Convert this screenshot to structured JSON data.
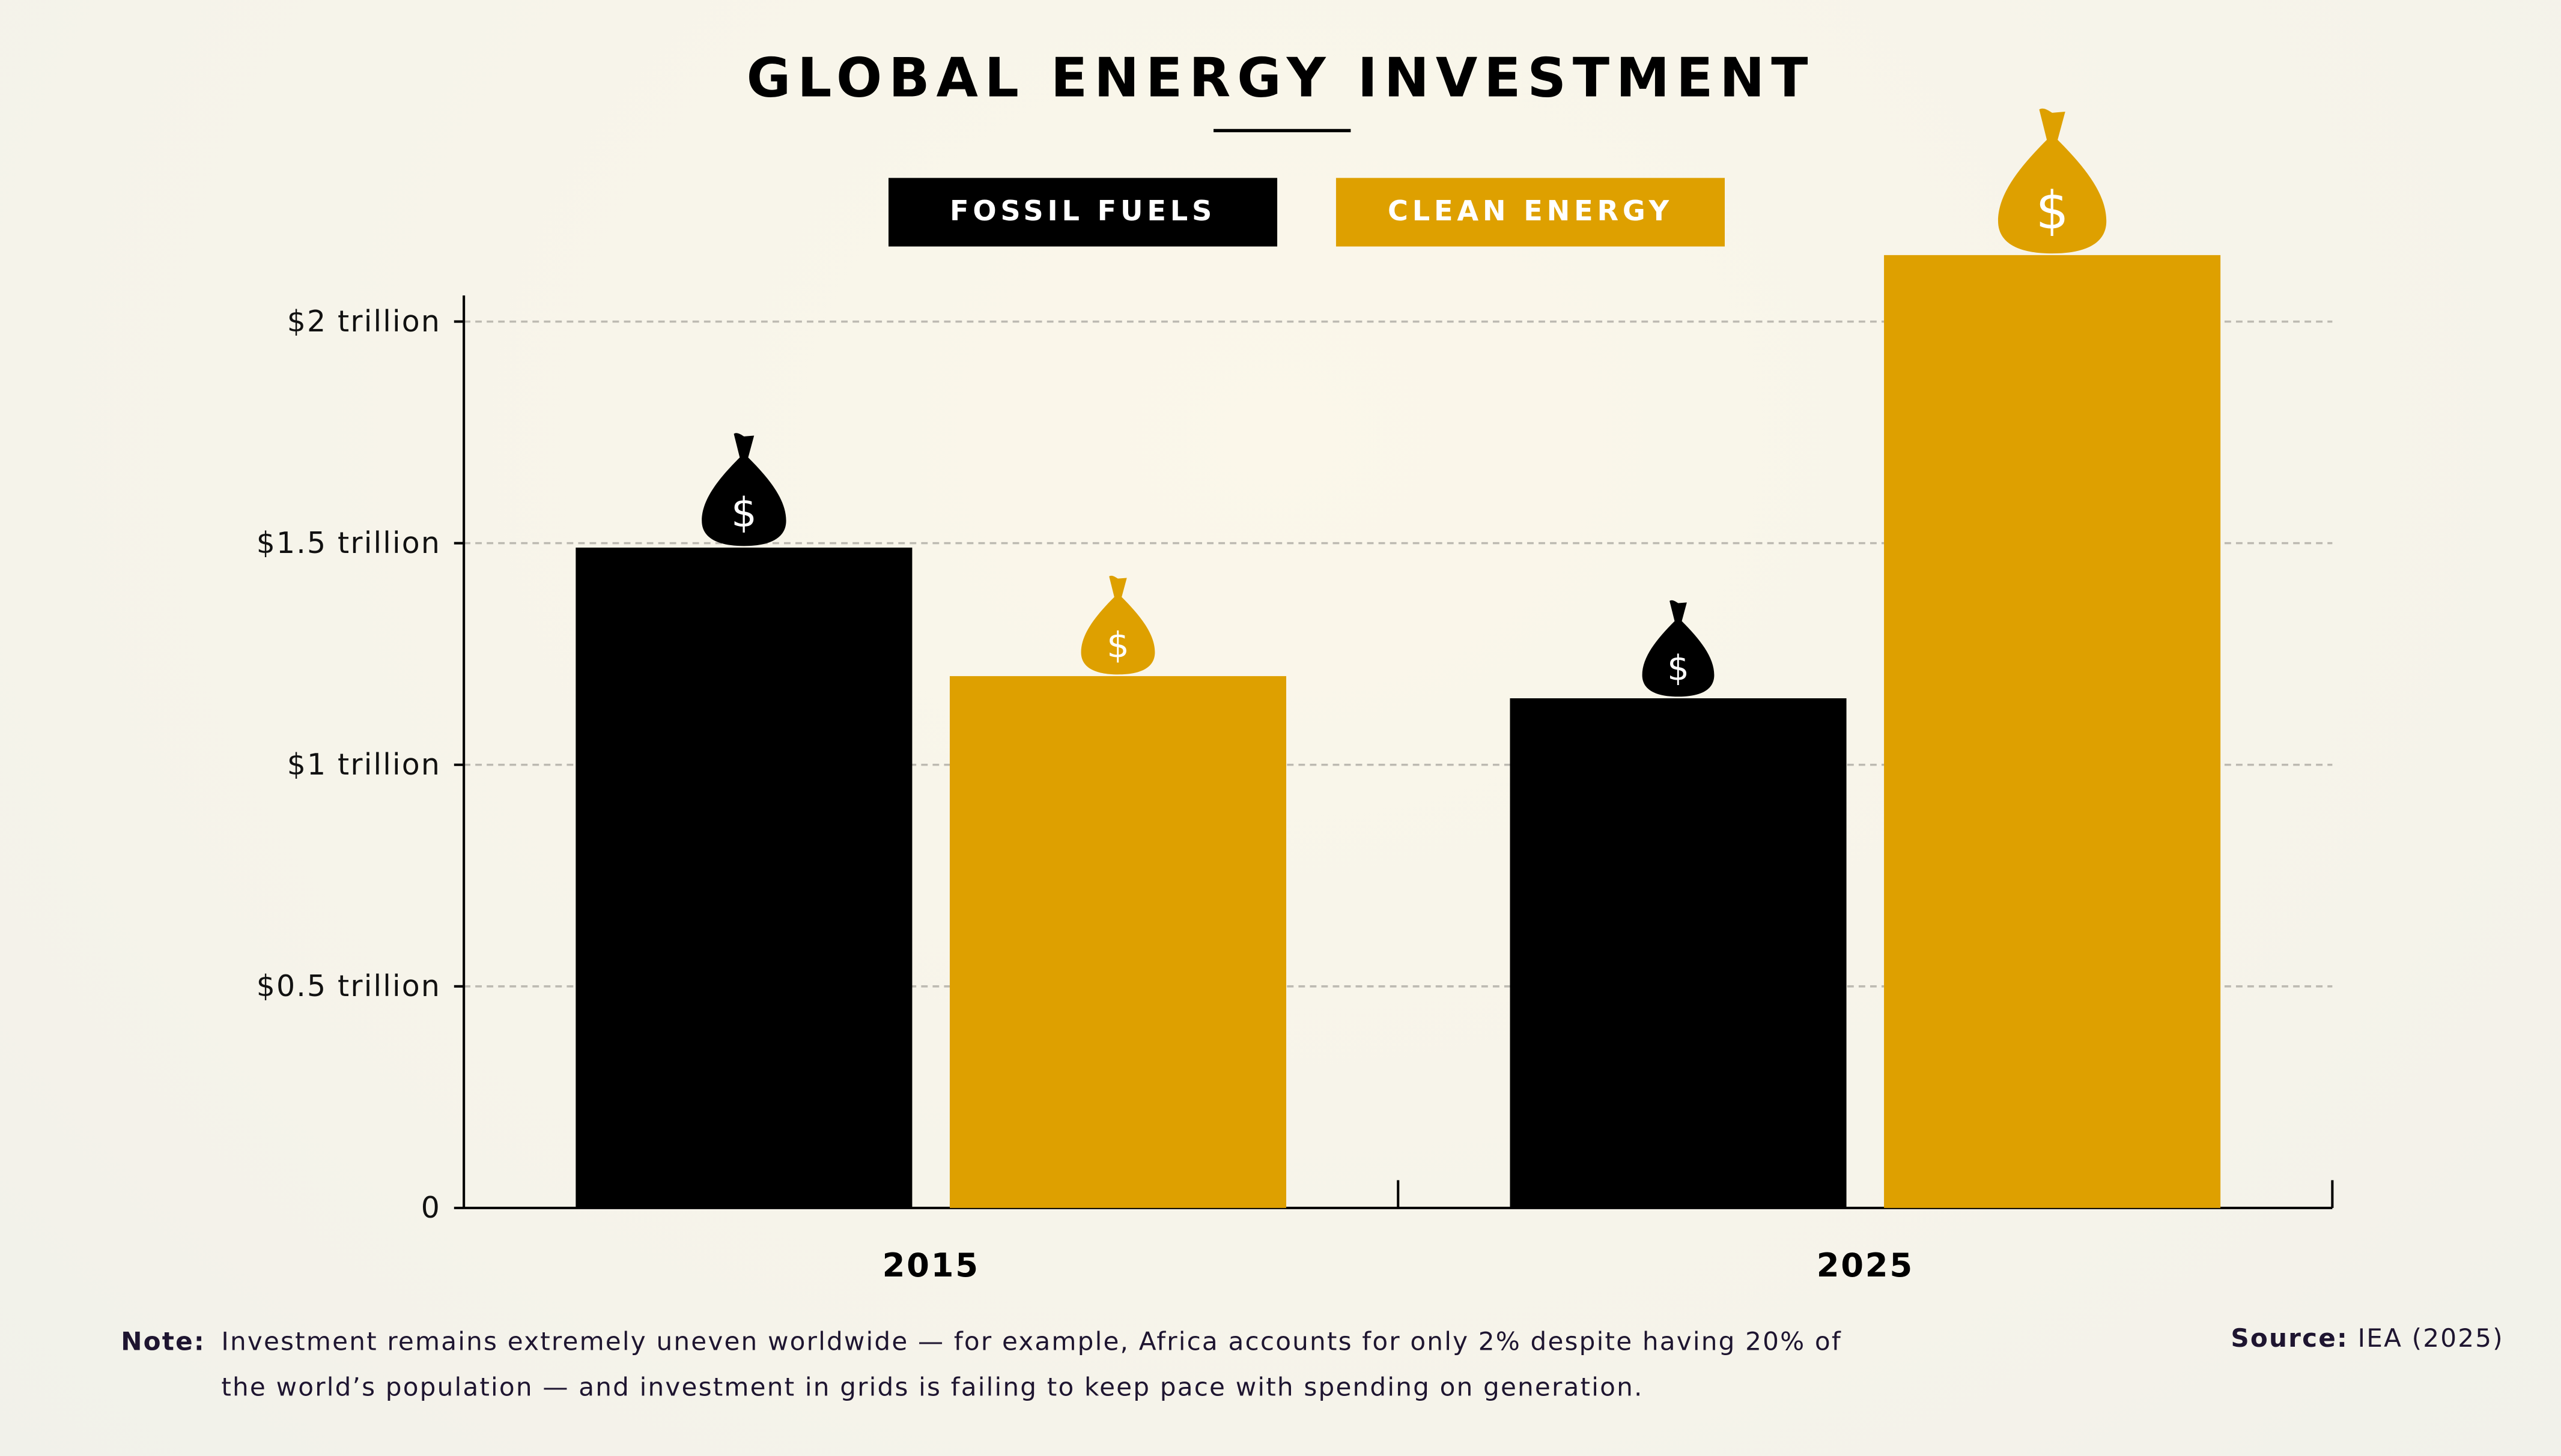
{
  "title": "GLOBAL ENERGY INVESTMENT",
  "legend": [
    {
      "label": "FOSSIL FUELS",
      "color": "#000000",
      "text_color": "#ffffff"
    },
    {
      "label": "CLEAN ENERGY",
      "color": "#dea000",
      "text_color": "#ffffff"
    }
  ],
  "note": {
    "label": "Note:",
    "text": "Investment remains extremely uneven worldwide — for example, Africa accounts for only 2% despite having 20% of the world’s population — and investment in grids is failing to keep pace with spending on generation."
  },
  "source": {
    "label": "Source:",
    "text": "IEA (2025)"
  },
  "chart_data": {
    "type": "bar",
    "title": "GLOBAL ENERGY INVESTMENT",
    "categories": [
      "2015",
      "2025"
    ],
    "series": [
      {
        "name": "FOSSIL FUELS",
        "color": "#000000",
        "values": [
          1.49,
          1.15
        ]
      },
      {
        "name": "CLEAN ENERGY",
        "color": "#dea000",
        "values": [
          1.2,
          2.15
        ]
      }
    ],
    "unit": "trillion USD",
    "ylim": [
      0,
      2
    ],
    "yticks": [
      0,
      0.5,
      1,
      1.5,
      2
    ],
    "ytick_labels": [
      "0",
      "$0.5 trillion",
      "$1 trillion",
      "$1.5 trillion",
      "$2 trillion"
    ],
    "grid": "horizontal dashed",
    "legend_position": "top-center",
    "marker_icon": "money-bag-icon",
    "marker_symbol": "$"
  }
}
